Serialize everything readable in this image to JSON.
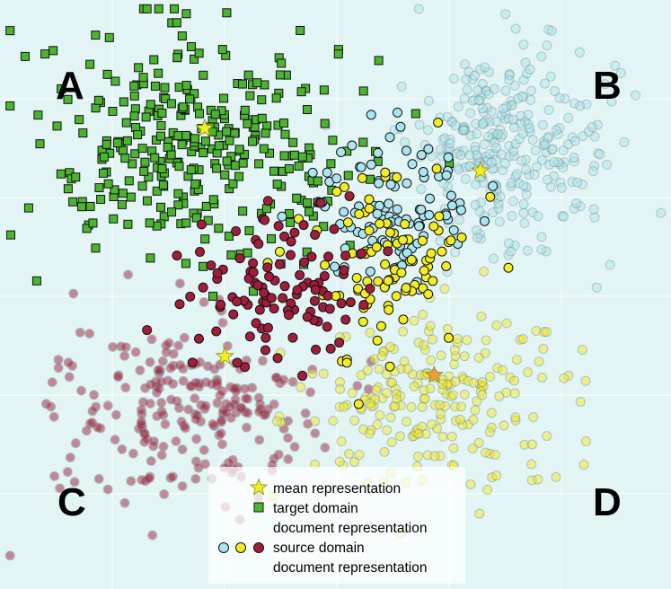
{
  "chart_data": {
    "type": "scatter",
    "title": "",
    "xlabel": "",
    "ylabel": "",
    "grid": true,
    "legend_position": "bottom-center",
    "corner_labels": [
      "A",
      "B",
      "C",
      "D"
    ],
    "legend": {
      "mean": "mean representation",
      "target_line1": "target domain",
      "target_line2": "document representation",
      "source_line1": "source domain",
      "source_line2": "document representation"
    },
    "colors": {
      "background": "#e2f4f4",
      "grid": "#ffffff",
      "target_green": "#4cb52f",
      "source_cyan": "#a9e6ef",
      "source_yellow": "#f2ec22",
      "source_red": "#a21d3b",
      "mean_star": "#f2ee22",
      "mean_star_orange": "#f29c3a"
    },
    "clusters": [
      {
        "name": "A",
        "domain": "target",
        "marker": "square",
        "color": "green",
        "faded": false,
        "count": 330,
        "center": [
          0.3,
          0.25
        ],
        "spread": [
          0.11,
          0.1
        ]
      },
      {
        "name": "B",
        "domain": "source",
        "marker": "circle",
        "color": "cyan",
        "faded": true,
        "count": 300,
        "center": [
          0.76,
          0.25
        ],
        "spread": [
          0.07,
          0.09
        ]
      },
      {
        "name": "C",
        "domain": "source",
        "marker": "circle",
        "color": "red",
        "faded": true,
        "count": 230,
        "center": [
          0.28,
          0.69
        ],
        "spread": [
          0.09,
          0.08
        ]
      },
      {
        "name": "D",
        "domain": "source",
        "marker": "circle",
        "color": "yellow",
        "faded": true,
        "count": 230,
        "center": [
          0.65,
          0.68
        ],
        "spread": [
          0.1,
          0.08
        ]
      },
      {
        "name": "mixed-cyan",
        "domain": "source",
        "marker": "circle",
        "color": "cyan",
        "faded": false,
        "count": 100,
        "center": [
          0.59,
          0.36
        ],
        "spread": [
          0.06,
          0.07
        ]
      },
      {
        "name": "mixed-yellow",
        "domain": "source",
        "marker": "circle",
        "color": "yellow",
        "faded": false,
        "count": 95,
        "center": [
          0.59,
          0.45
        ],
        "spread": [
          0.07,
          0.08
        ]
      },
      {
        "name": "mixed-red",
        "domain": "source",
        "marker": "circle",
        "color": "red",
        "faded": false,
        "count": 110,
        "center": [
          0.41,
          0.49
        ],
        "spread": [
          0.07,
          0.06
        ]
      }
    ],
    "mean_points": [
      {
        "cluster": "A",
        "x": 0.305,
        "y": 0.218,
        "color": "yellow"
      },
      {
        "cluster": "B",
        "x": 0.716,
        "y": 0.29,
        "color": "yellow"
      },
      {
        "cluster": "C",
        "x": 0.335,
        "y": 0.605,
        "color": "yellow"
      },
      {
        "cluster": "D",
        "x": 0.647,
        "y": 0.637,
        "color": "orange"
      }
    ]
  }
}
